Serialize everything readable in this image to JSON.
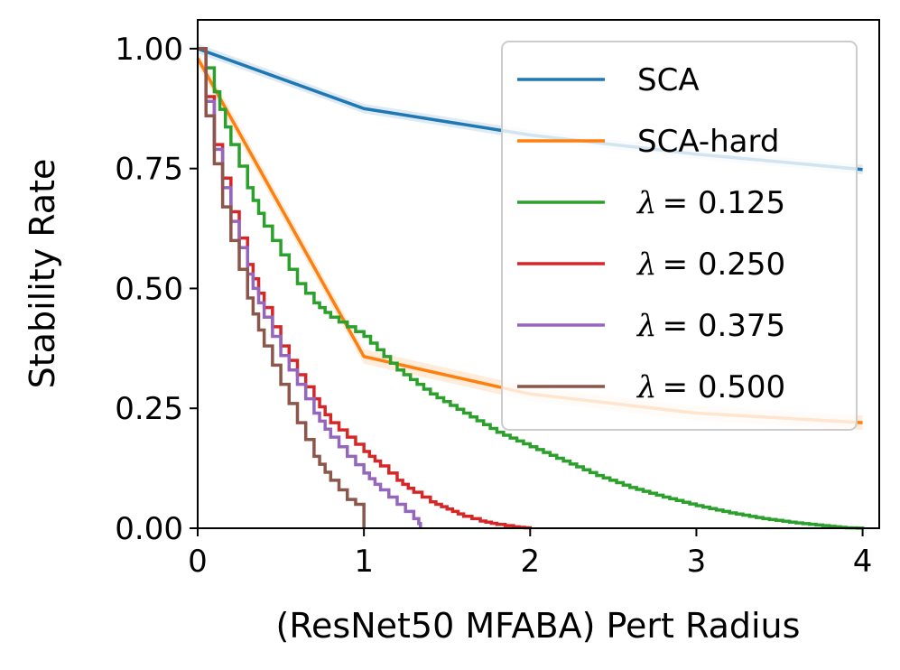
{
  "chart_data": {
    "type": "line",
    "title": "",
    "xlabel": "(ResNet50 MFABA) Pert Radius",
    "ylabel": "Stability Rate",
    "xlim": [
      0,
      4.1
    ],
    "ylim": [
      0,
      1.06
    ],
    "xticks": [
      0,
      1,
      2,
      3,
      4
    ],
    "xtick_labels": [
      "0",
      "1",
      "2",
      "3",
      "4"
    ],
    "yticks": [
      0,
      0.25,
      0.5,
      0.75,
      1.0
    ],
    "ytick_labels": [
      "0.00",
      "0.25",
      "0.50",
      "0.75",
      "1.00"
    ],
    "grid": false,
    "legend_position": "top-right",
    "series": [
      {
        "name": "SCA",
        "color": "#1f77b4",
        "style": "line",
        "x": [
          0,
          1,
          2,
          3,
          4
        ],
        "y": [
          1.0,
          0.875,
          0.82,
          0.78,
          0.748
        ],
        "band": 0.01
      },
      {
        "name": "SCA-hard",
        "color": "#ff7f0e",
        "style": "line",
        "x": [
          0,
          1,
          2,
          3,
          4
        ],
        "y": [
          0.98,
          0.358,
          0.28,
          0.24,
          0.22
        ],
        "band": 0.015
      },
      {
        "name": "λ = 0.125",
        "legend_prefix": "λ",
        "legend_value": "= 0.125",
        "color": "#2ca02c",
        "style": "step",
        "x": [
          0,
          0.05,
          0.1,
          0.2,
          0.3,
          0.4,
          0.5,
          0.6,
          0.7,
          0.8,
          0.9,
          1.0,
          1.2,
          1.4,
          1.6,
          1.8,
          2.0,
          2.2,
          2.4,
          2.6,
          2.8,
          3.0,
          3.2,
          3.4,
          3.6,
          3.8,
          3.9,
          4.0
        ],
        "y": [
          1.0,
          0.96,
          0.91,
          0.8,
          0.71,
          0.63,
          0.57,
          0.51,
          0.47,
          0.44,
          0.42,
          0.4,
          0.33,
          0.28,
          0.24,
          0.2,
          0.17,
          0.14,
          0.11,
          0.085,
          0.065,
          0.047,
          0.032,
          0.02,
          0.011,
          0.004,
          0.001,
          0.0
        ]
      },
      {
        "name": "λ = 0.250",
        "legend_prefix": "λ",
        "legend_value": "= 0.250",
        "color": "#d62728",
        "style": "step",
        "x": [
          0,
          0.05,
          0.1,
          0.15,
          0.2,
          0.3,
          0.4,
          0.5,
          0.6,
          0.7,
          0.8,
          0.9,
          1.0,
          1.1,
          1.2,
          1.3,
          1.4,
          1.5,
          1.6,
          1.7,
          1.8,
          1.9,
          2.0
        ],
        "y": [
          1.0,
          0.9,
          0.8,
          0.73,
          0.66,
          0.55,
          0.46,
          0.38,
          0.32,
          0.27,
          0.22,
          0.19,
          0.16,
          0.13,
          0.1,
          0.075,
          0.055,
          0.04,
          0.025,
          0.015,
          0.008,
          0.003,
          0.0
        ]
      },
      {
        "name": "λ = 0.375",
        "legend_prefix": "λ",
        "legend_value": "= 0.375",
        "color": "#9467bd",
        "style": "step",
        "x": [
          0,
          0.05,
          0.1,
          0.15,
          0.2,
          0.3,
          0.4,
          0.5,
          0.6,
          0.7,
          0.8,
          0.9,
          1.0,
          1.1,
          1.2,
          1.25,
          1.3,
          1.33,
          1.34
        ],
        "y": [
          1.0,
          0.89,
          0.79,
          0.71,
          0.64,
          0.53,
          0.44,
          0.36,
          0.3,
          0.24,
          0.19,
          0.15,
          0.115,
          0.08,
          0.05,
          0.035,
          0.02,
          0.01,
          0.0
        ]
      },
      {
        "name": "λ = 0.500",
        "legend_prefix": "λ",
        "legend_value": "= 0.500",
        "color": "#8c564b",
        "style": "step",
        "x": [
          0,
          0.05,
          0.1,
          0.15,
          0.2,
          0.3,
          0.4,
          0.5,
          0.6,
          0.7,
          0.8,
          0.9,
          0.95,
          1.0,
          1.0
        ],
        "y": [
          1.0,
          0.86,
          0.76,
          0.67,
          0.6,
          0.48,
          0.38,
          0.3,
          0.22,
          0.15,
          0.1,
          0.06,
          0.05,
          0.045,
          0.0
        ]
      }
    ]
  }
}
